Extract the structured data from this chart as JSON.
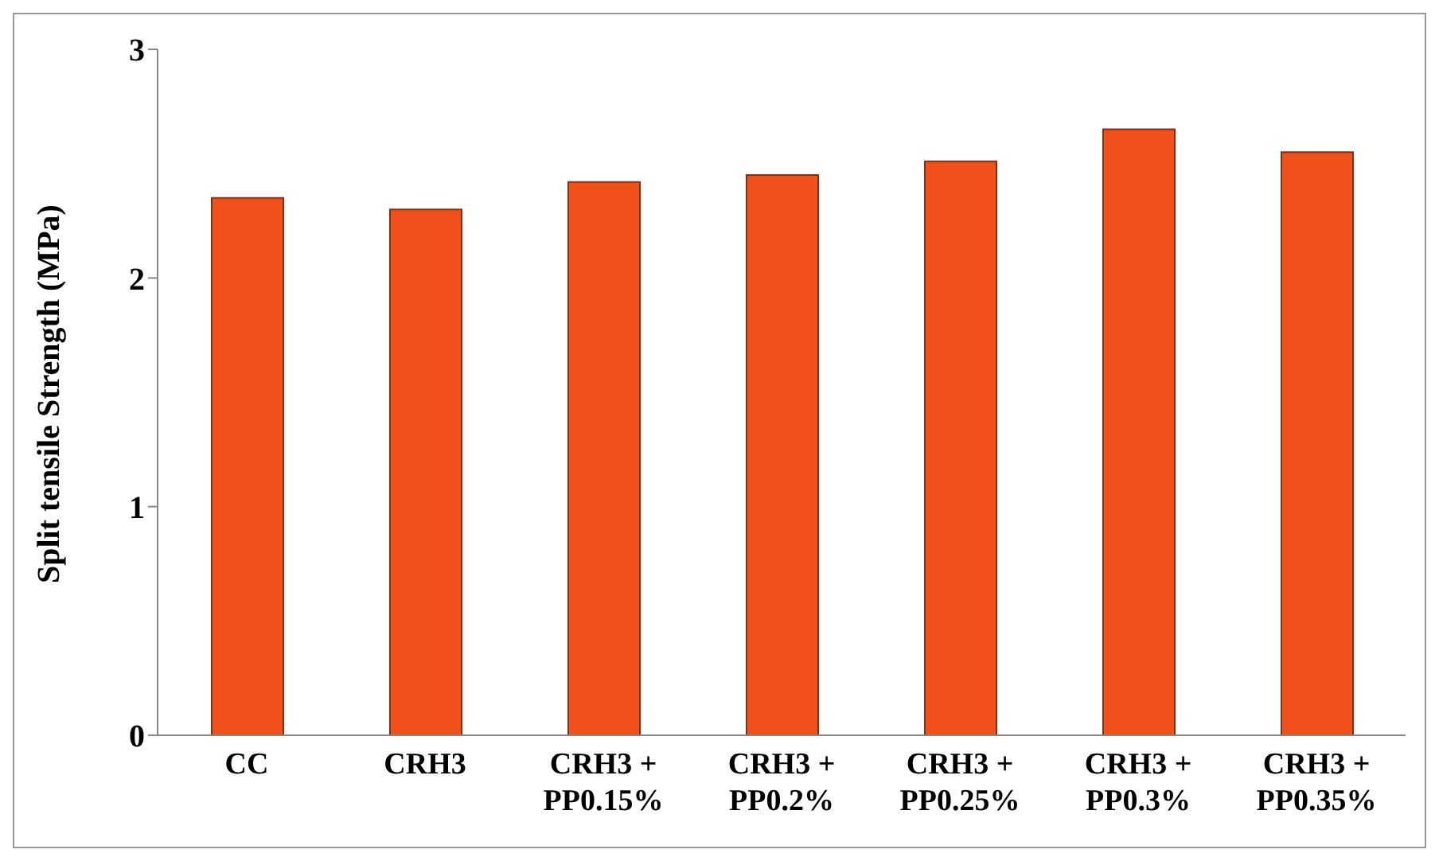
{
  "chart_data": {
    "type": "bar",
    "ylabel": "Split tensile Strength (MPa)",
    "categories": [
      "CC",
      "CRH3",
      "CRH3 +\nPP0.15%",
      "CRH3 +\nPP0.2%",
      "CRH3 +\nPP0.25%",
      "CRH3 +\nPP0.3%",
      "CRH3 +\nPP0.35%"
    ],
    "values": [
      2.35,
      2.3,
      2.42,
      2.45,
      2.51,
      2.65,
      2.55
    ],
    "color": "#f0501a",
    "ylim": [
      0,
      3
    ],
    "yticks": [
      0,
      1,
      2,
      3
    ],
    "grid": false,
    "legend": false
  }
}
